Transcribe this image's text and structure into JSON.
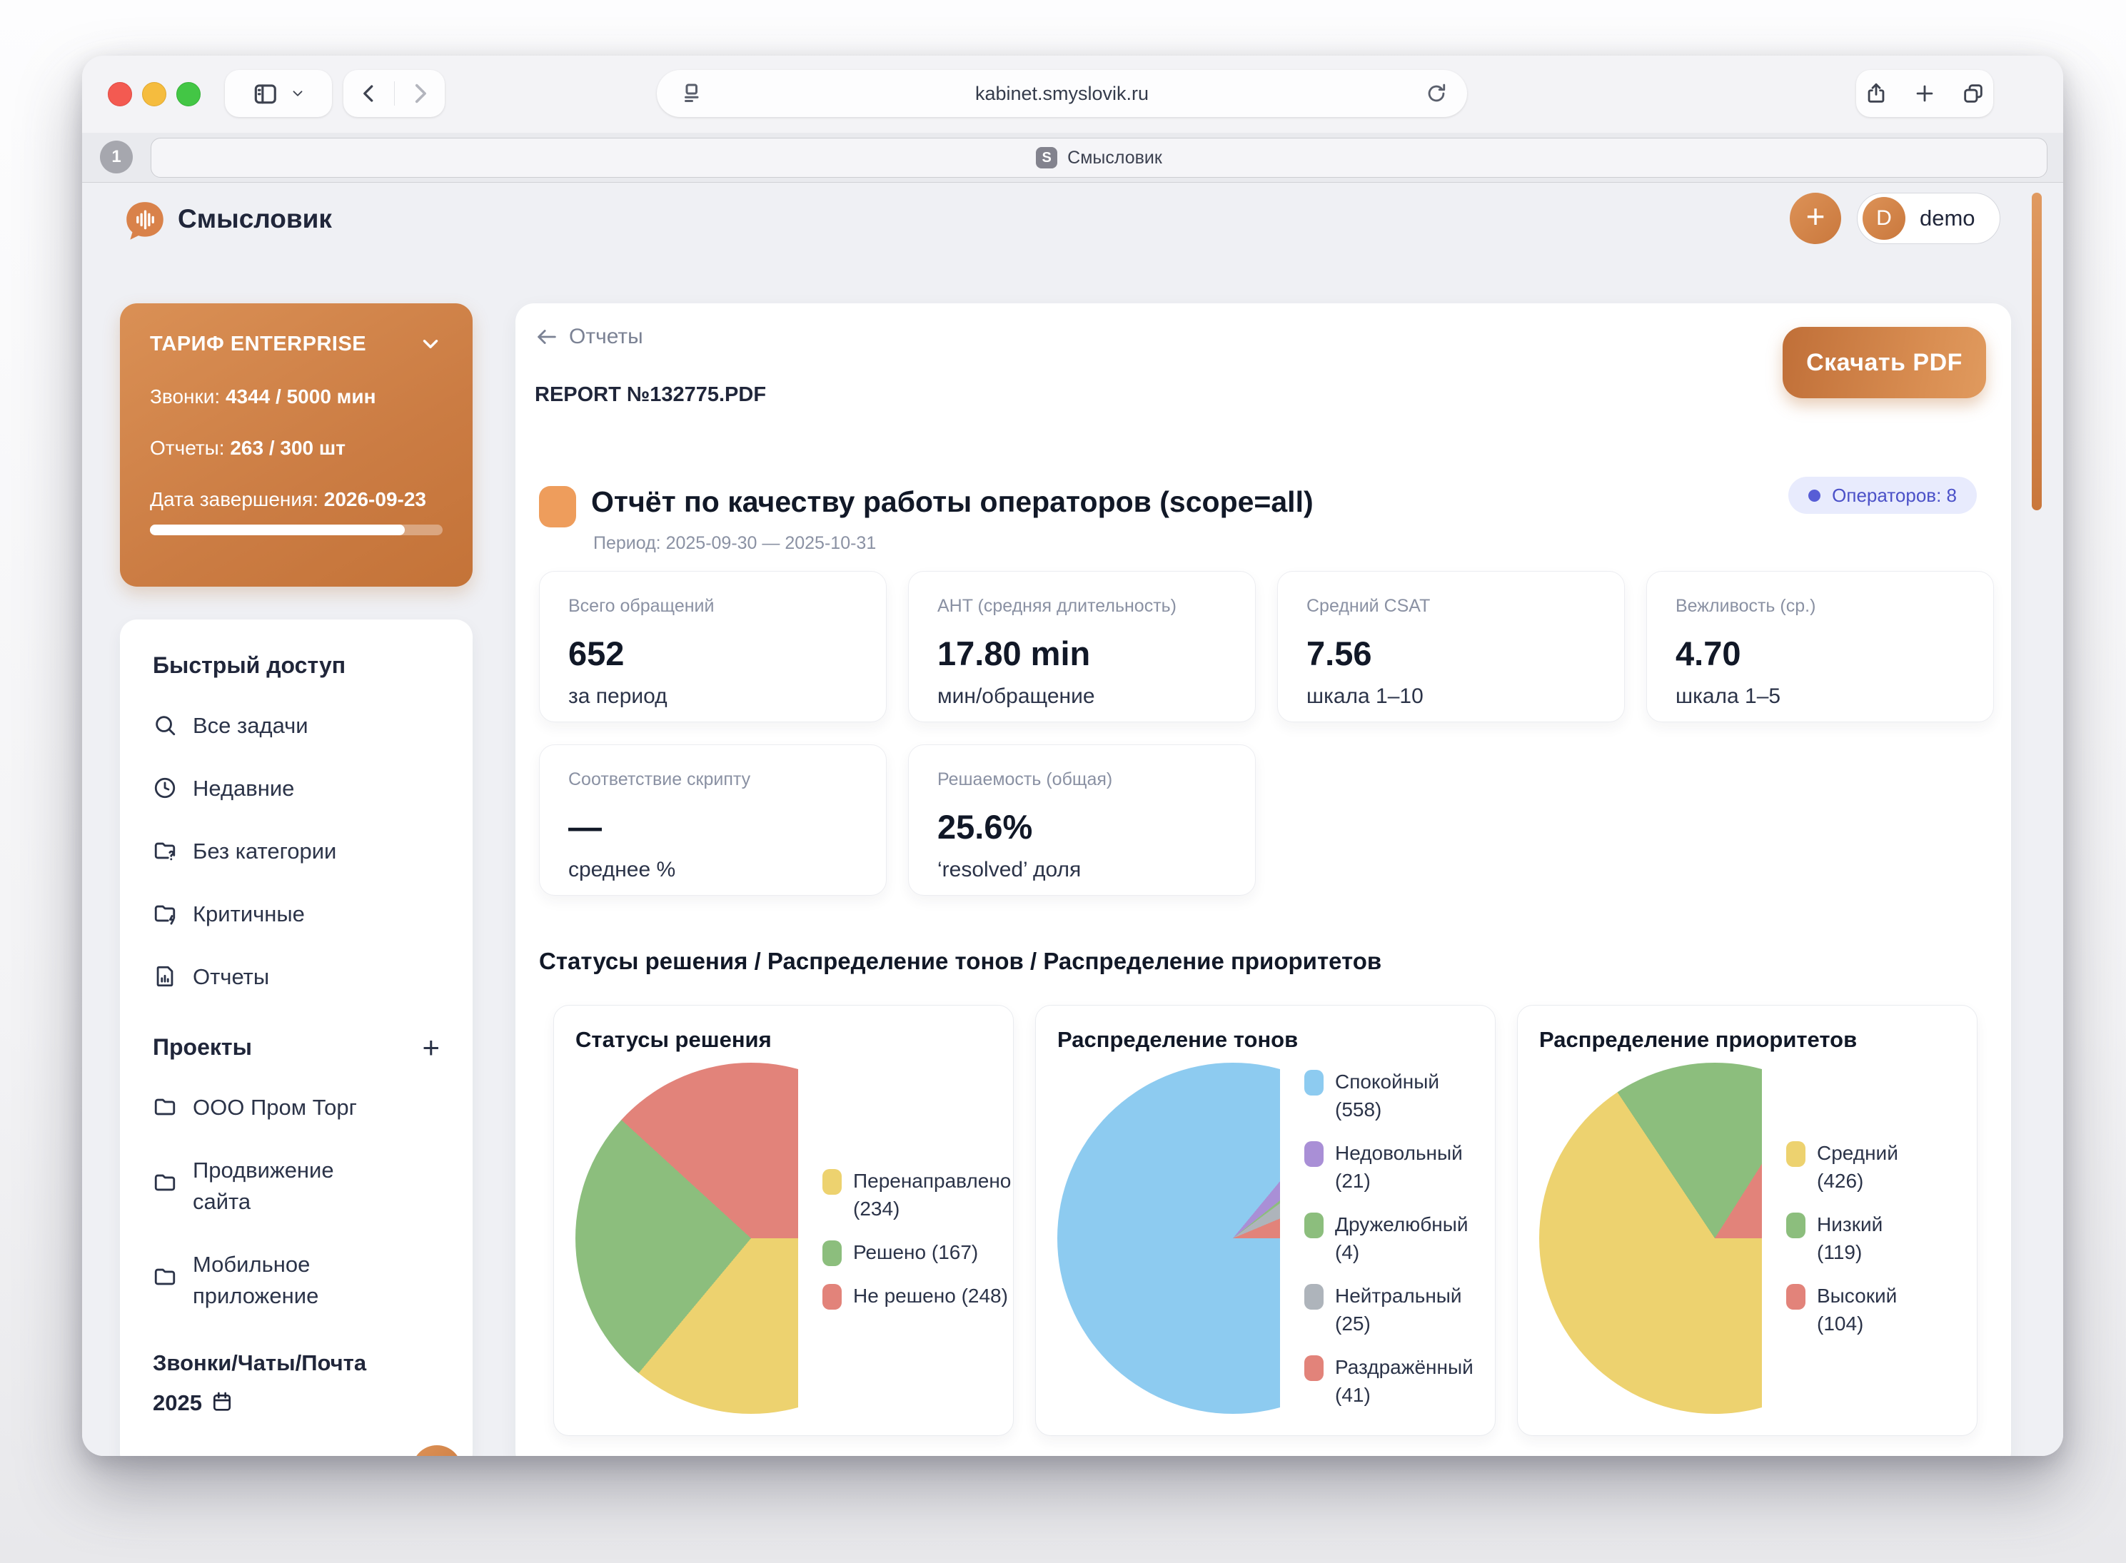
{
  "browser": {
    "url": "kabinet.smyslovik.ru",
    "tab_count": "1",
    "favicon_letter": "S",
    "tab_title": "Смысловик"
  },
  "app_header": {
    "app_name": "Смысловик",
    "add_label": "+",
    "avatar_letter": "D",
    "user_name": "demo"
  },
  "sidebar": {
    "tariff": {
      "title": "ТАРИФ ENTERPRISE",
      "calls_label": "Звонки:",
      "calls_value": "4344 / 5000 мин",
      "reports_label": "Отчеты:",
      "reports_value": "263 / 300 шт",
      "end_label": "Дата завершения:",
      "end_value": "2026-09-23",
      "progress_percent": 87
    },
    "quick_access": {
      "heading": "Быстрый доступ",
      "items": [
        {
          "icon": "search-icon",
          "label": "Все задачи"
        },
        {
          "icon": "clock-icon",
          "label": "Недавние"
        },
        {
          "icon": "folder-question-icon",
          "label": "Без категории"
        },
        {
          "icon": "folder-bolt-icon",
          "label": "Критичные"
        },
        {
          "icon": "doc-chart-icon",
          "label": "Отчеты"
        }
      ]
    },
    "projects": {
      "heading": "Проекты",
      "add_label": "+",
      "items": [
        {
          "icon": "folder-icon",
          "label": "ООО Пром Торг"
        },
        {
          "icon": "folder-icon",
          "label": "Продвижение сайта"
        },
        {
          "icon": "folder-icon",
          "label": "Мобильное приложение"
        }
      ],
      "footer": "Звонки/Чаты/Почта 2025"
    }
  },
  "main": {
    "back_label": "Отчеты",
    "report_name": "REPORT №132775.PDF",
    "download_button": "Скачать PDF",
    "title": "Отчёт по качеству работы операторов (scope=all)",
    "period": "Период: 2025-09-30 — 2025-10-31",
    "operators_badge": "Операторов: 8",
    "stats": [
      {
        "label": "Всего обращений",
        "value": "652",
        "sub": "за период"
      },
      {
        "label": "AHT (средняя длительность)",
        "value": "17.80 min",
        "sub": "мин/обращение"
      },
      {
        "label": "Средний CSAT",
        "value": "7.56",
        "sub": "шкала 1–10"
      },
      {
        "label": "Вежливость (ср.)",
        "value": "4.70",
        "sub": "шкала 1–5"
      },
      {
        "label": "Соответствие скрипту",
        "value": "—",
        "sub": "среднее %"
      },
      {
        "label": "Решаемость (общая)",
        "value": "25.6%",
        "sub": "‘resolved’ доля"
      }
    ],
    "charts_heading": "Статусы решения / Распределение тонов / Распределение приоритетов",
    "charts": [
      {
        "title": "Статусы решения",
        "chart_data": {
          "type": "pie",
          "labels": [
            "Перенаправлено",
            "Решено",
            "Не решено"
          ],
          "values": [
            234,
            167,
            248
          ],
          "colors": [
            "#edd26f",
            "#8cbe7d",
            "#e2837a"
          ],
          "legend": [
            [
              "Перенаправлено",
              "(234)"
            ],
            [
              "Решено (167)"
            ],
            [
              "Не решено (248)"
            ]
          ],
          "legend_position": "right",
          "start": "east-clockwise"
        }
      },
      {
        "title": "Распределение тонов",
        "chart_data": {
          "type": "pie",
          "labels": [
            "Спокойный",
            "Недовольный",
            "Дружелюбный",
            "Нейтральный",
            "Раздражённый"
          ],
          "values": [
            558,
            21,
            4,
            25,
            41
          ],
          "colors": [
            "#8dcbf0",
            "#a98fd6",
            "#8cbe7d",
            "#aeb4bb",
            "#e2837a"
          ],
          "legend": [
            [
              "Спокойный",
              "(558)"
            ],
            [
              "Недовольный",
              "(21)"
            ],
            [
              "Дружелюбный",
              "(4)"
            ],
            [
              "Нейтральный",
              "(25)"
            ],
            [
              "Раздражённый",
              "(41)"
            ]
          ],
          "legend_position": "right",
          "start": "east-clockwise"
        }
      },
      {
        "title": "Распределение приоритетов",
        "chart_data": {
          "type": "pie",
          "labels": [
            "Средний",
            "Низкий",
            "Высокий"
          ],
          "values": [
            426,
            119,
            104
          ],
          "colors": [
            "#edd26f",
            "#8cbe7d",
            "#e2837a"
          ],
          "legend": [
            [
              "Средний",
              "(426)"
            ],
            [
              "Низкий",
              "(119)"
            ],
            [
              "Высокий",
              "(104)"
            ]
          ],
          "legend_position": "right",
          "start": "east-clockwise"
        }
      }
    ]
  },
  "colors": {
    "brand_orange": "#cd7f46",
    "badge_bg": "#e8ebfd",
    "badge_text": "#4b51c8",
    "app_bg": "#eff0f4"
  }
}
